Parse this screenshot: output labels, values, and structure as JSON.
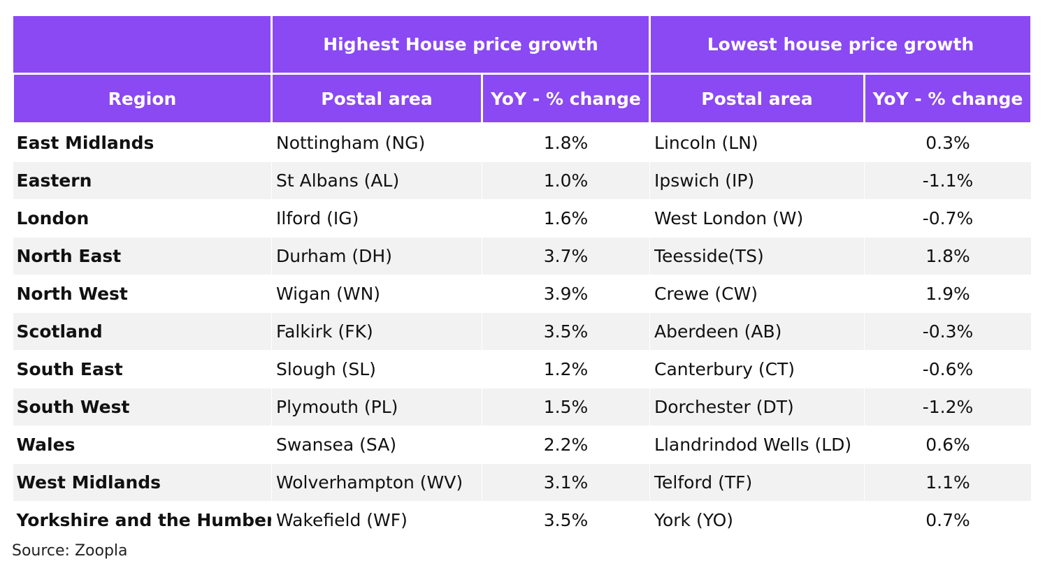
{
  "table": {
    "group_headers": {
      "highest": "Highest House price growth",
      "lowest": "Lowest house price growth"
    },
    "column_headers": {
      "region": "Region",
      "high_postal": "Postal area",
      "high_change": "YoY - % change",
      "low_postal": "Postal area",
      "low_change": "YoY - % change"
    },
    "rows": [
      {
        "region": "East Midlands",
        "high_postal": "Nottingham (NG)",
        "high_change": "1.8%",
        "low_postal": "Lincoln (LN)",
        "low_change": "0.3%"
      },
      {
        "region": "Eastern",
        "high_postal": "St Albans (AL)",
        "high_change": "1.0%",
        "low_postal": "Ipswich (IP)",
        "low_change": "-1.1%"
      },
      {
        "region": "London",
        "high_postal": "Ilford (IG)",
        "high_change": "1.6%",
        "low_postal": "West London (W)",
        "low_change": "-0.7%"
      },
      {
        "region": "North East",
        "high_postal": "Durham (DH)",
        "high_change": "3.7%",
        "low_postal": "Teesside(TS)",
        "low_change": "1.8%"
      },
      {
        "region": "North West",
        "high_postal": "Wigan (WN)",
        "high_change": "3.9%",
        "low_postal": "Crewe (CW)",
        "low_change": "1.9%"
      },
      {
        "region": "Scotland",
        "high_postal": "Falkirk (FK)",
        "high_change": "3.5%",
        "low_postal": "Aberdeen (AB)",
        "low_change": "-0.3%"
      },
      {
        "region": "South East",
        "high_postal": "Slough (SL)",
        "high_change": "1.2%",
        "low_postal": "Canterbury (CT)",
        "low_change": "-0.6%"
      },
      {
        "region": "South West",
        "high_postal": "Plymouth (PL)",
        "high_change": "1.5%",
        "low_postal": "Dorchester (DT)",
        "low_change": "-1.2%"
      },
      {
        "region": "Wales",
        "high_postal": "Swansea (SA)",
        "high_change": "2.2%",
        "low_postal": "Llandrindod Wells (LD)",
        "low_change": "0.6%"
      },
      {
        "region": "West Midlands",
        "high_postal": "Wolverhampton (WV)",
        "high_change": "3.1%",
        "low_postal": "Telford (TF)",
        "low_change": "1.1%"
      },
      {
        "region": "Yorkshire and the Humber",
        "high_postal": "Wakefield (WF)",
        "high_change": "3.5%",
        "low_postal": "York (YO)",
        "low_change": "0.7%"
      }
    ]
  },
  "source": "Source: Zoopla",
  "colors": {
    "header_bg": "#8a49f3",
    "header_text": "#ffffff",
    "stripe": "#f2f2f2"
  }
}
